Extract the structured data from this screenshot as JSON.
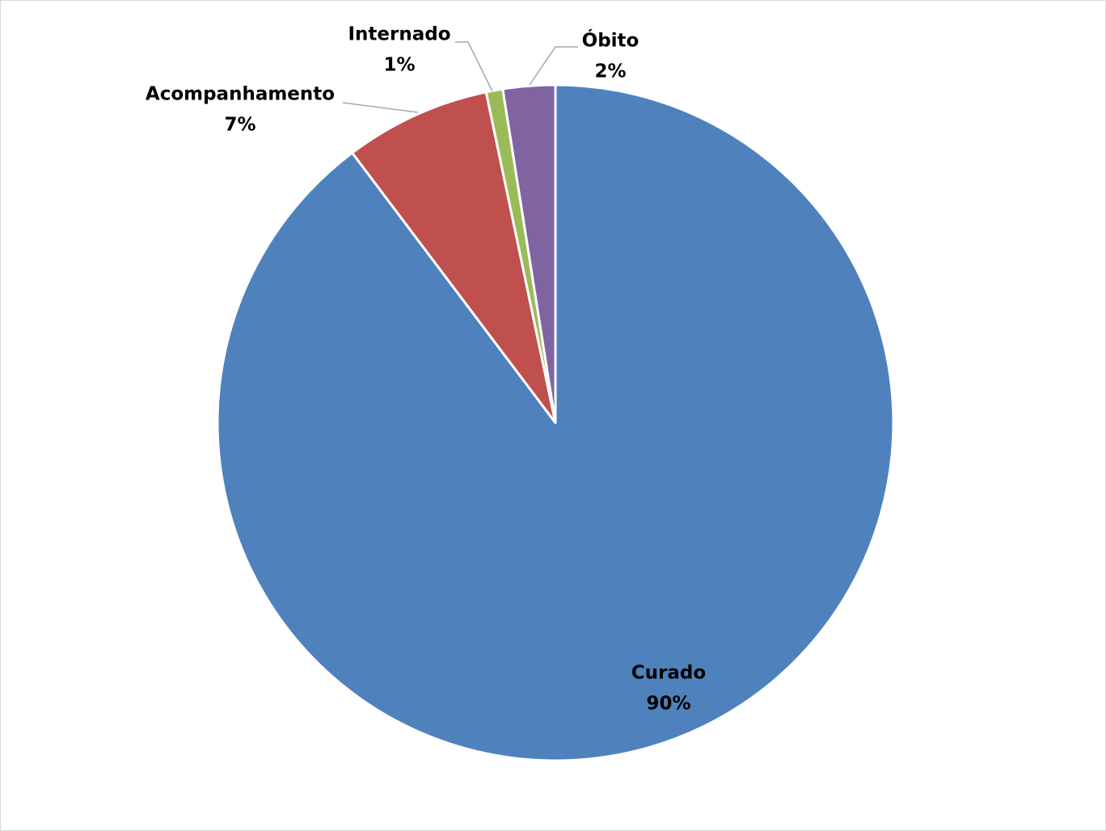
{
  "chart_data": {
    "type": "pie",
    "title": "",
    "start_angle_deg": 0,
    "direction": "clockwise",
    "slices": [
      {
        "label": "Curado",
        "value": 90,
        "display": "90%",
        "color": "#4f81bd"
      },
      {
        "label": "Acompanhamento",
        "value": 7,
        "display": "7%",
        "color": "#c0504d"
      },
      {
        "label": "Internado",
        "value": 0.8,
        "display": "1%",
        "color": "#9bbb59"
      },
      {
        "label": "Óbito",
        "value": 2.5,
        "display": "2%",
        "color": "#8064a2"
      }
    ],
    "legend": "none",
    "leader_line_color": "#a6a6a6",
    "slice_border_color": "#ffffff"
  }
}
